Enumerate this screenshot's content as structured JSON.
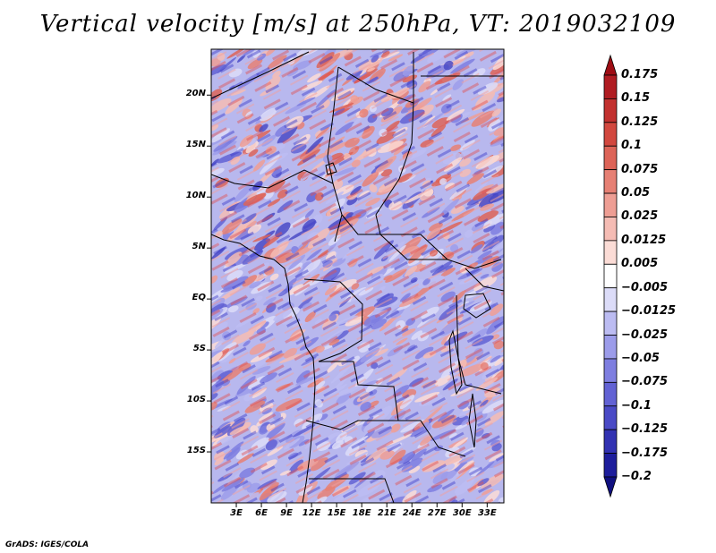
{
  "title": "Vertical velocity [m/s] at 250hPa, VT: 2019032109",
  "credit": "GrADS: IGES/COLA",
  "latitude_labels": [
    "20N",
    "15N",
    "10N",
    "5N",
    "EQ",
    "5S",
    "10S",
    "15S"
  ],
  "latitude_values": [
    20,
    15,
    10,
    5,
    0,
    -5,
    -10,
    -15
  ],
  "longitude_labels": [
    "3E",
    "6E",
    "9E",
    "12E",
    "15E",
    "18E",
    "21E",
    "24E",
    "27E",
    "30E",
    "33E"
  ],
  "longitude_values": [
    3,
    6,
    9,
    12,
    15,
    18,
    21,
    24,
    27,
    30,
    33
  ],
  "map_extent": {
    "lon_min": 0,
    "lon_max": 35,
    "lat_min": -20,
    "lat_max": 24.5
  },
  "colorbar": {
    "labels": [
      "0.175",
      "0.15",
      "0.125",
      "0.1",
      "0.075",
      "0.05",
      "0.025",
      "0.0125",
      "0.005",
      "−0.005",
      "−0.0125",
      "−0.025",
      "−0.05",
      "−0.075",
      "−0.1",
      "−0.125",
      "−0.175",
      "−0.2"
    ],
    "colors": [
      "#9e0d14",
      "#b01c22",
      "#c2312f",
      "#d2483f",
      "#dd6458",
      "#e68074",
      "#ee9e94",
      "#f5bcb4",
      "#fbdcd6",
      "#ffffff",
      "#dcdcf8",
      "#bcbcf2",
      "#9c9cea",
      "#7e7ee0",
      "#6262d4",
      "#4a4ac6",
      "#3232b2",
      "#1e1e9c",
      "#101080"
    ]
  }
}
